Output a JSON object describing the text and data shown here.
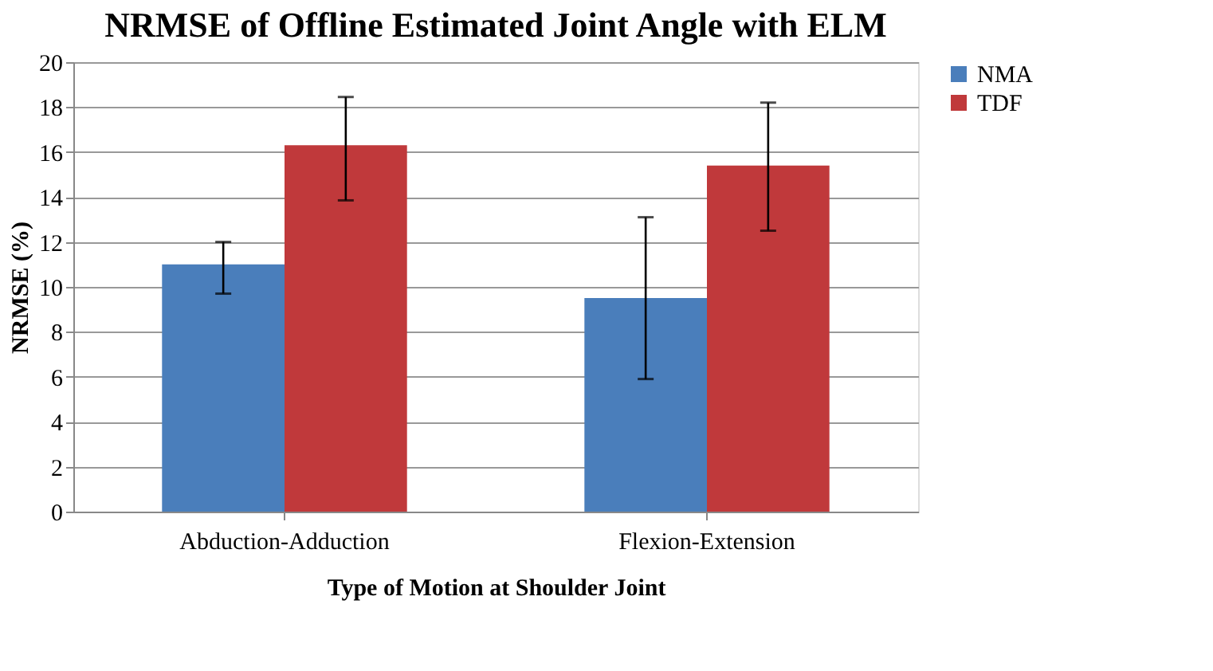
{
  "chart_data": {
    "type": "bar",
    "title": "NRMSE of  Offline Estimated Joint Angle with ELM",
    "xlabel": "Type of Motion at Shoulder Joint",
    "ylabel": "NRMSE (%)",
    "categories": [
      "Abduction-Adduction",
      "Flexion-Extension"
    ],
    "series": [
      {
        "name": "NMA",
        "color": "#4a7ebb",
        "values": [
          11.0,
          9.5
        ],
        "errors": [
          [
            9.7,
            12.0
          ],
          [
            5.9,
            13.1
          ]
        ]
      },
      {
        "name": "TDF",
        "color": "#c0393b",
        "values": [
          16.3,
          15.4
        ],
        "errors": [
          [
            13.85,
            18.45
          ],
          [
            12.5,
            18.2
          ]
        ]
      }
    ],
    "ylim": [
      0,
      20
    ],
    "yticks": [
      0,
      2,
      4,
      6,
      8,
      10,
      12,
      14,
      16,
      18,
      20
    ],
    "grid": "y",
    "legend": "right"
  }
}
